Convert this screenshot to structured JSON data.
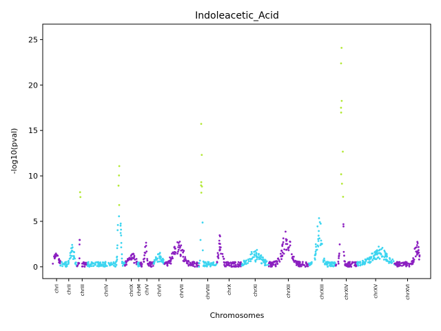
{
  "chart_data": {
    "type": "scatter",
    "title": "Indoleacetic_Acid",
    "xlabel": "Chromosomes",
    "ylabel": "-log10(pval)",
    "ylim": [
      -1.3,
      26.7
    ],
    "yticks": [
      0,
      5,
      10,
      15,
      20,
      25
    ],
    "grid": false,
    "colors": {
      "odd": "#8B1FC0",
      "even": "#3DD5F0",
      "significant": "#B5E93A"
    },
    "significance_threshold": 6,
    "chromosomes": [
      {
        "name": "chrI",
        "span": [
          0,
          9
        ],
        "peak": {
          "pos": 0.5,
          "height": 1.6,
          "width": 0.4
        }
      },
      {
        "name": "chrII",
        "span": [
          9,
          29
        ],
        "peak": {
          "pos": 0.7,
          "height": 2.4,
          "width": 0.15
        }
      },
      {
        "name": "chrIII",
        "span": [
          29,
          41
        ],
        "peak": {
          "pos": 0.3,
          "height": 9.8,
          "width": 0.06
        }
      },
      {
        "name": "chrIV",
        "span": [
          41,
          86
        ],
        "peak": {
          "pos": 0.85,
          "height": 14.4,
          "width": 0.04
        }
      },
      {
        "name": "chrIX",
        "span": [
          86,
          101
        ],
        "peak": {
          "pos": 0.5,
          "height": 1.3,
          "width": 0.4
        }
      },
      {
        "name": "chrM",
        "span": [
          101,
          104
        ],
        "peak": {
          "pos": 0.5,
          "height": 5.6,
          "width": 0.05
        }
      },
      {
        "name": "chrV",
        "span": [
          104,
          120
        ],
        "peak": {
          "pos": 0.4,
          "height": 3.1,
          "width": 0.1
        }
      },
      {
        "name": "chrVI",
        "span": [
          120,
          133
        ],
        "peak": {
          "pos": 0.5,
          "height": 1.3,
          "width": 0.4
        }
      },
      {
        "name": "chrVII",
        "span": [
          133,
          174
        ],
        "peak": {
          "pos": 0.4,
          "height": 2.6,
          "width": 0.2
        }
      },
      {
        "name": "chrVIII",
        "span": [
          174,
          195
        ],
        "peak": {
          "pos": 0.15,
          "height": 19.7,
          "width": 0.05
        }
      },
      {
        "name": "chrX",
        "span": [
          195,
          225
        ],
        "peak": {
          "pos": 0.15,
          "height": 3.3,
          "width": 0.1
        }
      },
      {
        "name": "chrXI",
        "span": [
          225,
          257
        ],
        "peak": {
          "pos": 0.5,
          "height": 1.5,
          "width": 0.3
        }
      },
      {
        "name": "chrXII",
        "span": [
          257,
          304
        ],
        "peak": {
          "pos": 0.45,
          "height": 3.6,
          "width": 0.15
        }
      },
      {
        "name": "chrXIII",
        "span": [
          304,
          337
        ],
        "peak": {
          "pos": 0.4,
          "height": 5.7,
          "width": 0.12
        }
      },
      {
        "name": "chrXIV",
        "span": [
          337,
          362
        ],
        "peak": {
          "pos": 0.28,
          "height": 25.4,
          "width": 0.07
        }
      },
      {
        "name": "chrXV",
        "span": [
          362,
          407
        ],
        "peak": {
          "pos": 0.6,
          "height": 1.8,
          "width": 0.3
        }
      },
      {
        "name": "chrXVI",
        "span": [
          407,
          438
        ],
        "peak": {
          "pos": 0.85,
          "height": 2.7,
          "width": 0.12
        }
      }
    ]
  }
}
